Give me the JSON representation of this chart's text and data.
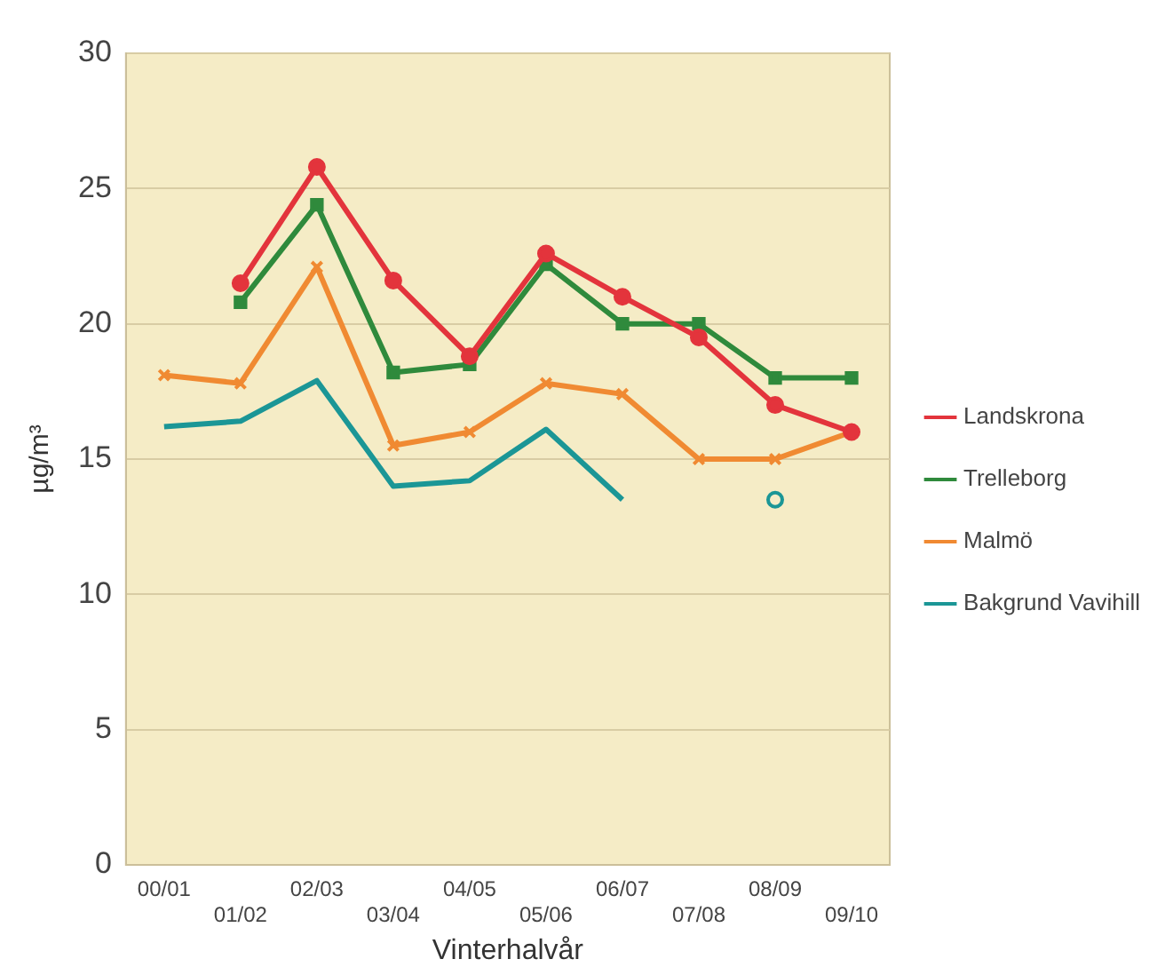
{
  "chart_data": {
    "type": "line",
    "xlabel": "Vinterhalvår",
    "ylabel": "µg/m³",
    "categories": [
      "00/01",
      "01/02",
      "02/03",
      "03/04",
      "04/05",
      "05/06",
      "06/07",
      "07/08",
      "08/09",
      "09/10"
    ],
    "series": [
      {
        "name": "Landskrona",
        "color": "#e3343c",
        "marker": "circle",
        "values": [
          null,
          21.5,
          25.8,
          21.6,
          18.8,
          22.6,
          21.0,
          19.5,
          17.0,
          16.0
        ]
      },
      {
        "name": "Trelleborg",
        "color": "#2f8a3c",
        "marker": "square",
        "values": [
          null,
          20.8,
          24.4,
          18.2,
          18.5,
          22.2,
          20.0,
          20.0,
          18.0,
          18.0
        ]
      },
      {
        "name": "Malmö",
        "color": "#f08a32",
        "marker": "cross",
        "values": [
          18.1,
          17.8,
          22.1,
          15.5,
          16.0,
          17.8,
          17.4,
          15.0,
          15.0,
          16.0
        ]
      },
      {
        "name": "Bakgrund Vavihill",
        "color": "#1b9696",
        "marker": "none",
        "values": [
          16.2,
          16.4,
          17.9,
          14.0,
          14.2,
          16.1,
          13.5,
          null,
          13.5,
          null
        ]
      }
    ],
    "ylim": [
      0,
      30
    ],
    "yticks": [
      0,
      5,
      10,
      15,
      20,
      25,
      30
    ],
    "grid": "y",
    "legend": "right"
  }
}
